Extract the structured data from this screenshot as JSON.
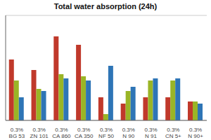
{
  "chart_data": {
    "type": "bar",
    "title": "Total water absorption (24h)",
    "categories": [
      "0.3%\nBG 53",
      "0.3%\nZN 101",
      "0.3%\nCA 860",
      "0.3%\nCA 350",
      "0.3%\nNF 50",
      "0.3%\nN 90",
      "0.3%\nN 91",
      "0.3%\nCN 5+",
      "0.3%\nN 90+"
    ],
    "series": [
      {
        "color": "#c0392b",
        "values": [
          58,
          48,
          80,
          72,
          22,
          16,
          22,
          22,
          18
        ]
      },
      {
        "color": "#9ab526",
        "values": [
          38,
          30,
          44,
          42,
          6,
          28,
          38,
          38,
          18
        ]
      },
      {
        "color": "#2e75b6",
        "values": [
          22,
          28,
          40,
          38,
          52,
          32,
          40,
          40,
          16
        ]
      }
    ],
    "ylim": [
      0,
      100
    ],
    "yticks": [
      0,
      20,
      40,
      60,
      80,
      100
    ],
    "grid": true,
    "tick_labels": "x"
  }
}
